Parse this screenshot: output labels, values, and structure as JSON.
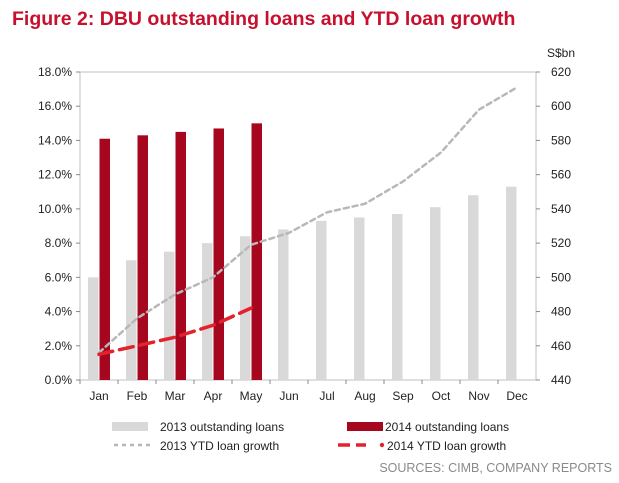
{
  "figure": {
    "title": "Figure 2: DBU outstanding loans and YTD loan growth",
    "right_axis_unit": "S$bn",
    "source": "SOURCES: CIMB, COMPANY REPORTS"
  },
  "colors": {
    "title": "#c8102e",
    "bar_2013": "#d9d9d9",
    "bar_2014": "#a6071f",
    "line_2013": "#b8b8b8",
    "line_2014": "#e3222b"
  },
  "chart_data": {
    "type": "bar",
    "categories": [
      "Jan",
      "Feb",
      "Mar",
      "Apr",
      "May",
      "Jun",
      "Jul",
      "Aug",
      "Sep",
      "Oct",
      "Nov",
      "Dec"
    ],
    "y_left": {
      "min": 0,
      "max": 18,
      "step": 2,
      "ticks": [
        "0.0%",
        "2.0%",
        "4.0%",
        "6.0%",
        "8.0%",
        "10.0%",
        "12.0%",
        "14.0%",
        "16.0%",
        "18.0%"
      ]
    },
    "y_right": {
      "min": 440,
      "max": 620,
      "step": 20,
      "ticks": [
        "440",
        "460",
        "480",
        "500",
        "520",
        "540",
        "560",
        "580",
        "600",
        "620"
      ]
    },
    "series": [
      {
        "name": "2013 outstanding loans",
        "kind": "bar",
        "axis": "right",
        "values": [
          500,
          510,
          515,
          520,
          524,
          528,
          533,
          535,
          537,
          541,
          548,
          553
        ]
      },
      {
        "name": "2014 outstanding loans",
        "kind": "bar",
        "axis": "right",
        "values": [
          581,
          583,
          585,
          587,
          590,
          null,
          null,
          null,
          null,
          null,
          null,
          null
        ]
      },
      {
        "name": "2013 YTD loan growth",
        "kind": "line",
        "style": "dashed",
        "axis": "left",
        "values": [
          1.6,
          3.6,
          5.0,
          6.0,
          7.9,
          8.6,
          9.8,
          10.3,
          11.6,
          13.3,
          15.8,
          17.1
        ]
      },
      {
        "name": "2014 YTD loan growth",
        "kind": "line",
        "style": "long-dashed",
        "axis": "left",
        "values": [
          1.5,
          2.0,
          2.5,
          3.2,
          4.2,
          null,
          null,
          null,
          null,
          null,
          null,
          null
        ]
      }
    ],
    "grid": false,
    "legend_position": "bottom"
  }
}
